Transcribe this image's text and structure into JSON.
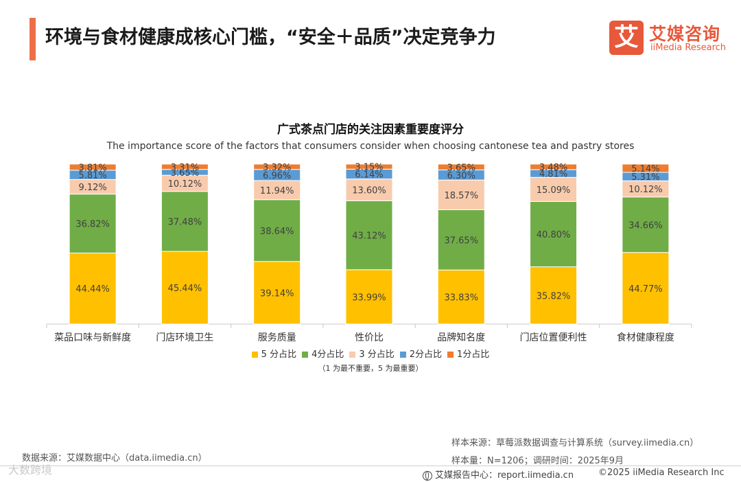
{
  "header": {
    "title": "环境与食材健康成核心门槛，“安全＋品质”决定竞争力",
    "accent_color": "#EF6E47"
  },
  "logo": {
    "mark": "艾",
    "name_cn": "艾媒咨询",
    "name_en": "iiMedia Research",
    "color": "#E8583A"
  },
  "chart_data": {
    "type": "bar",
    "stacked": true,
    "percent_stacked": true,
    "title": "广式茶点门店的关注因素重要度评分",
    "subtitle": "The importance score of the factors that consumers consider when choosing cantonese tea and pastry stores",
    "categories": [
      "菜品口味与新鲜度",
      "门店环境卫生",
      "服务质量",
      "性价比",
      "品牌知名度",
      "门店位置便利性",
      "食材健康程度"
    ],
    "series": [
      {
        "name": "5 分占比",
        "color": "#FFC000",
        "values": [
          44.44,
          45.44,
          39.14,
          33.99,
          33.83,
          35.82,
          44.77
        ]
      },
      {
        "name": "4分占比",
        "color": "#70AD47",
        "values": [
          36.82,
          37.48,
          38.64,
          43.12,
          37.65,
          40.8,
          34.66
        ]
      },
      {
        "name": "3 分占比",
        "color": "#F8CBAD",
        "values": [
          9.12,
          10.12,
          11.94,
          13.6,
          18.57,
          15.09,
          10.12
        ]
      },
      {
        "name": "2分占比",
        "color": "#5B9BD5",
        "values": [
          5.81,
          3.65,
          6.96,
          6.14,
          6.3,
          4.81,
          5.31
        ]
      },
      {
        "name": "1分占比",
        "color": "#ED7D31",
        "values": [
          3.81,
          3.31,
          3.32,
          3.15,
          3.65,
          3.48,
          5.14
        ]
      }
    ],
    "ylim": [
      0,
      100
    ],
    "grid": false,
    "legend_position": "bottom",
    "note": "（1 为最不重要，5 为最重要）"
  },
  "sources": {
    "sample_source": "样本来源：草莓派数据调查与计算系统（survey.iimedia.cn）",
    "sample_size": "样本量：N=1206；调研时间：2025年9月",
    "data_source": "数据来源：艾媒数据中心（data.iimedia.cn）"
  },
  "footer": {
    "report_center": "艾媒报告中心：report.iimedia.cn",
    "copyright": "©2025 iiMedia Research Inc",
    "watermark": "大数跨境"
  }
}
